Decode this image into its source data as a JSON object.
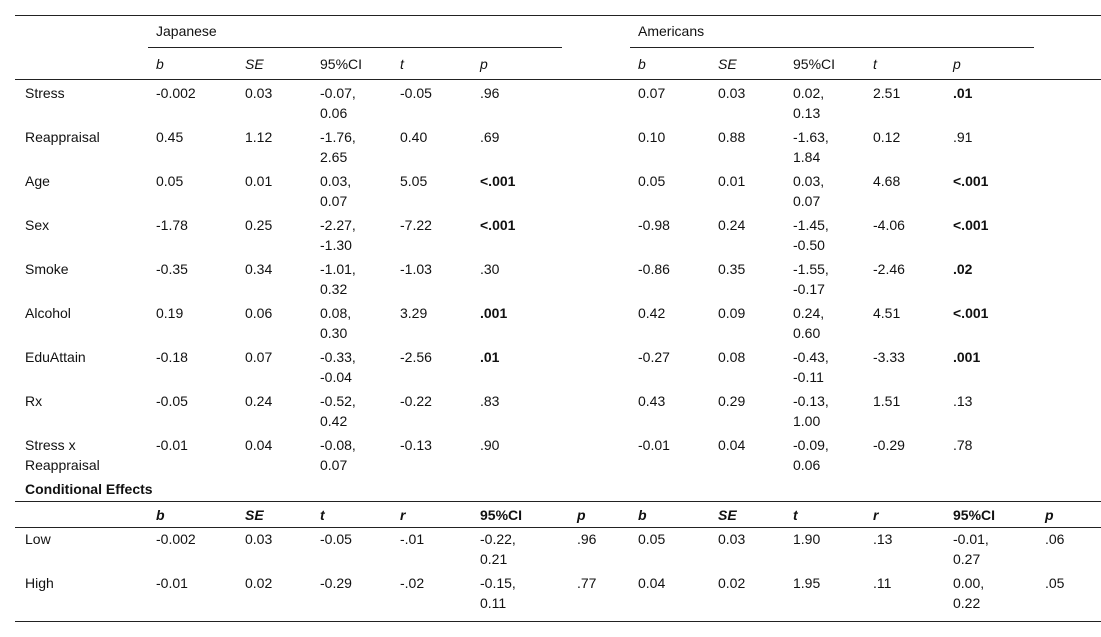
{
  "groups": [
    "Japanese",
    "Americans"
  ],
  "main_table": {
    "headers": [
      "b",
      "SE",
      "95%CI",
      "t",
      "p"
    ],
    "rows": [
      {
        "label": "Stress",
        "japanese": [
          "-0.002",
          "0.03",
          "-0.07, 0.06",
          "-0.05",
          ".96"
        ],
        "americans": [
          "0.07",
          "0.03",
          "0.02, 0.13",
          "2.51",
          ".01"
        ],
        "p_bold": [
          false,
          true
        ]
      },
      {
        "label": "Reappraisal",
        "japanese": [
          "0.45",
          "1.12",
          "-1.76, 2.65",
          "0.40",
          ".69"
        ],
        "americans": [
          "0.10",
          "0.88",
          "-1.63, 1.84",
          "0.12",
          ".91"
        ],
        "p_bold": [
          false,
          false
        ]
      },
      {
        "label": "Age",
        "japanese": [
          "0.05",
          "0.01",
          "0.03, 0.07",
          "5.05",
          "<.001"
        ],
        "americans": [
          "0.05",
          "0.01",
          "0.03, 0.07",
          "4.68",
          "<.001"
        ],
        "p_bold": [
          true,
          true
        ]
      },
      {
        "label": "Sex",
        "japanese": [
          "-1.78",
          "0.25",
          "-2.27, -1.30",
          "-7.22",
          "<.001"
        ],
        "americans": [
          "-0.98",
          "0.24",
          "-1.45, -0.50",
          "-4.06",
          "<.001"
        ],
        "p_bold": [
          true,
          true
        ]
      },
      {
        "label": "Smoke",
        "japanese": [
          "-0.35",
          "0.34",
          "-1.01, 0.32",
          "-1.03",
          ".30"
        ],
        "americans": [
          "-0.86",
          "0.35",
          "-1.55, -0.17",
          "-2.46",
          ".02"
        ],
        "p_bold": [
          false,
          true
        ]
      },
      {
        "label": "Alcohol",
        "japanese": [
          "0.19",
          "0.06",
          "0.08, 0.30",
          "3.29",
          ".001"
        ],
        "americans": [
          "0.42",
          "0.09",
          "0.24, 0.60",
          "4.51",
          "<.001"
        ],
        "p_bold": [
          true,
          true
        ]
      },
      {
        "label": "EduAttain",
        "japanese": [
          "-0.18",
          "0.07",
          "-0.33, -0.04",
          "-2.56",
          ".01"
        ],
        "americans": [
          "-0.27",
          "0.08",
          "-0.43, -0.11",
          "-3.33",
          ".001"
        ],
        "p_bold": [
          true,
          true
        ]
      },
      {
        "label": "Rx",
        "japanese": [
          "-0.05",
          "0.24",
          "-0.52, 0.42",
          "-0.22",
          ".83"
        ],
        "americans": [
          "0.43",
          "0.29",
          "-0.13, 1.00",
          "1.51",
          ".13"
        ],
        "p_bold": [
          false,
          false
        ]
      },
      {
        "label": "Stress x Reappraisal",
        "japanese": [
          "-0.01",
          "0.04",
          "-0.08, 0.07",
          "-0.13",
          ".90"
        ],
        "americans": [
          "-0.01",
          "0.04",
          "-0.09, 0.06",
          "-0.29",
          ".78"
        ],
        "p_bold": [
          false,
          false
        ]
      }
    ]
  },
  "conditional": {
    "title": "Conditional Effects",
    "headers": [
      "b",
      "SE",
      "t",
      "r",
      "95%CI",
      "p"
    ],
    "rows": [
      {
        "label": "Low",
        "japanese": [
          "-0.002",
          "0.03",
          "-0.05",
          "-.01",
          "-0.22, 0.21",
          ".96"
        ],
        "americans": [
          "0.05",
          "0.03",
          "1.90",
          ".13",
          "-0.01, 0.27",
          ".06"
        ]
      },
      {
        "label": "High",
        "japanese": [
          "-0.01",
          "0.02",
          "-0.29",
          "-.02",
          "-0.15, 0.11",
          ".77"
        ],
        "americans": [
          "0.04",
          "0.02",
          "1.95",
          ".11",
          "0.00, 0.22",
          ".05"
        ]
      }
    ]
  }
}
